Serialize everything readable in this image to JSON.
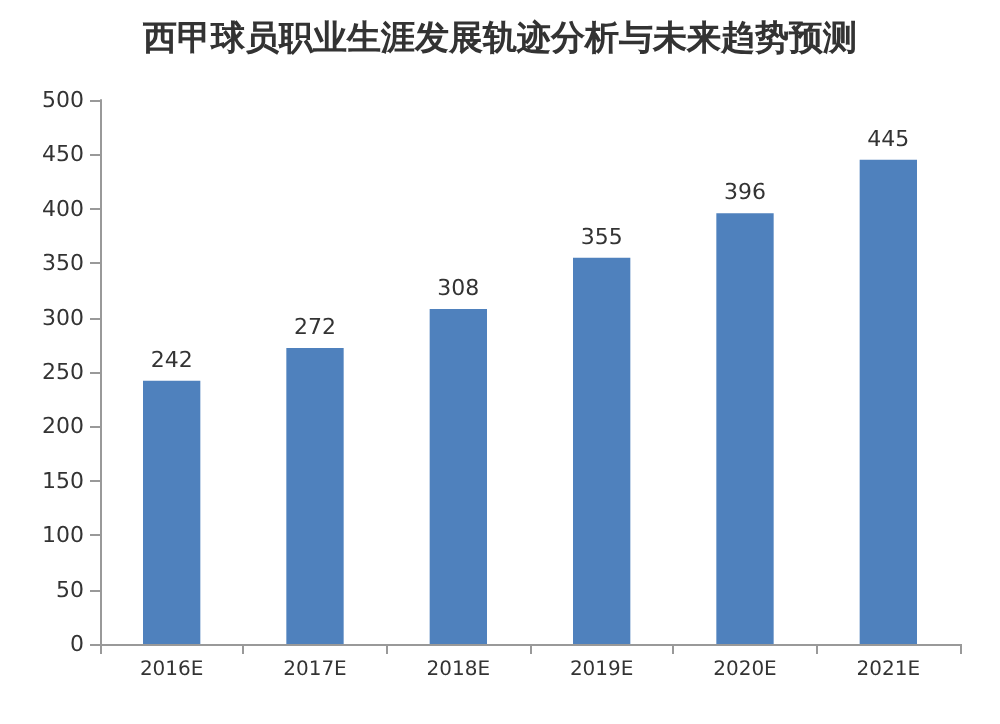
{
  "chart_data": {
    "type": "bar",
    "title": "西甲球员职业生涯发展轨迹分析与未来趋势预测",
    "categories": [
      "2016E",
      "2017E",
      "2018E",
      "2019E",
      "2020E",
      "2021E"
    ],
    "values": [
      242,
      272,
      308,
      355,
      396,
      445
    ],
    "color": "#4f81bd",
    "ylim": [
      0,
      500
    ],
    "yticks": [
      0,
      50,
      100,
      150,
      200,
      250,
      300,
      350,
      400,
      450,
      500
    ],
    "grid": false,
    "data_labels": true
  }
}
